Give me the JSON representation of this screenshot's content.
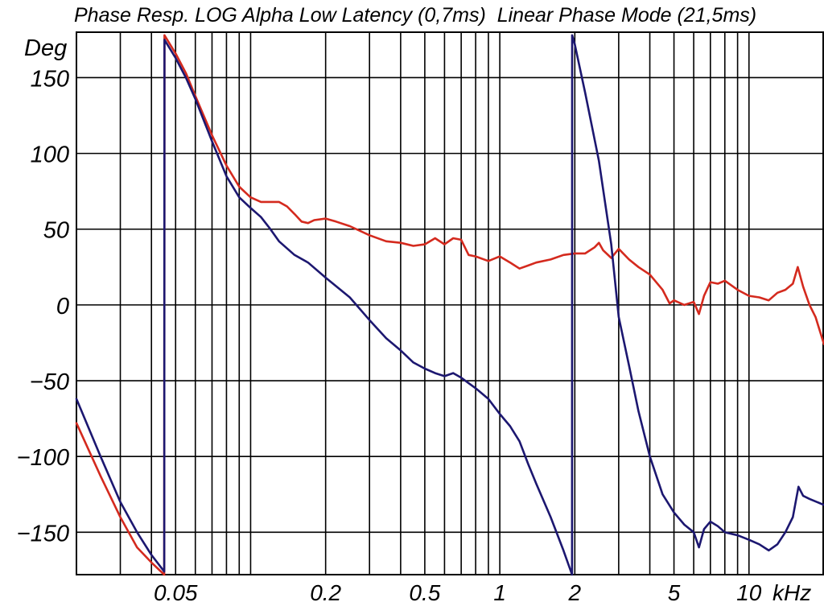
{
  "chart_data": {
    "type": "line",
    "title": "Phase Resp. LOG Alpha Low Latency (0,7ms)  Linear Phase Mode (21,5ms)",
    "ylabel": "Deg",
    "xlabel": "",
    "xscale": "log",
    "xunit": "kHz",
    "xlim": [
      0.02,
      20
    ],
    "ylim": [
      -178,
      180
    ],
    "grid": true,
    "y_ticks": [
      150,
      100,
      50,
      0,
      -50,
      -100,
      -150
    ],
    "y_tick_labels": [
      "150",
      "100",
      "50",
      "0",
      "−50",
      "−100",
      "−150"
    ],
    "x_tick_values": [
      0.05,
      0.2,
      0.5,
      1,
      2,
      5,
      10
    ],
    "x_tick_labels": [
      "0.05",
      "0.2",
      "0.5",
      "1",
      "2",
      "5",
      "10"
    ],
    "x_grid": [
      0.02,
      0.03,
      0.04,
      0.05,
      0.06,
      0.07,
      0.08,
      0.09,
      0.1,
      0.2,
      0.3,
      0.4,
      0.5,
      0.6,
      0.7,
      0.8,
      0.9,
      1,
      2,
      3,
      4,
      5,
      6,
      7,
      8,
      9,
      10,
      20
    ],
    "colors": {
      "red_series": "#d42a1e",
      "blue_series": "#1c1770",
      "grid": "#000000"
    },
    "series": [
      {
        "color": "#d42a1e",
        "points": [
          [
            0.02,
            -78
          ],
          [
            0.025,
            -113
          ],
          [
            0.03,
            -140
          ],
          [
            0.035,
            -160
          ],
          [
            0.04,
            -170
          ],
          [
            0.045,
            -178
          ],
          [
            0.0451,
            178
          ],
          [
            0.05,
            166
          ],
          [
            0.055,
            153
          ],
          [
            0.06,
            138
          ],
          [
            0.07,
            112
          ],
          [
            0.08,
            92
          ],
          [
            0.09,
            78
          ],
          [
            0.1,
            71
          ],
          [
            0.11,
            68
          ],
          [
            0.12,
            68
          ],
          [
            0.13,
            68
          ],
          [
            0.14,
            65
          ],
          [
            0.15,
            60
          ],
          [
            0.16,
            55
          ],
          [
            0.17,
            54
          ],
          [
            0.18,
            56
          ],
          [
            0.2,
            57
          ],
          [
            0.22,
            55
          ],
          [
            0.25,
            52
          ],
          [
            0.3,
            46
          ],
          [
            0.35,
            42
          ],
          [
            0.4,
            41
          ],
          [
            0.45,
            39
          ],
          [
            0.5,
            40
          ],
          [
            0.55,
            44
          ],
          [
            0.6,
            40
          ],
          [
            0.65,
            44
          ],
          [
            0.7,
            43
          ],
          [
            0.75,
            33
          ],
          [
            0.8,
            32
          ],
          [
            0.9,
            29
          ],
          [
            1.0,
            32
          ],
          [
            1.1,
            28
          ],
          [
            1.2,
            24
          ],
          [
            1.3,
            26
          ],
          [
            1.4,
            28
          ],
          [
            1.6,
            30
          ],
          [
            1.8,
            33
          ],
          [
            2.0,
            34
          ],
          [
            2.2,
            34
          ],
          [
            2.4,
            38
          ],
          [
            2.5,
            41
          ],
          [
            2.6,
            36
          ],
          [
            2.8,
            31
          ],
          [
            3.0,
            37
          ],
          [
            3.3,
            30
          ],
          [
            3.6,
            25
          ],
          [
            4.0,
            20
          ],
          [
            4.5,
            10
          ],
          [
            4.8,
            1
          ],
          [
            5.0,
            3
          ],
          [
            5.5,
            0
          ],
          [
            6.0,
            2
          ],
          [
            6.3,
            -6
          ],
          [
            6.6,
            6
          ],
          [
            7.0,
            15
          ],
          [
            7.5,
            14
          ],
          [
            8.0,
            16
          ],
          [
            9.0,
            10
          ],
          [
            10.0,
            6
          ],
          [
            11.0,
            5
          ],
          [
            12.0,
            3
          ],
          [
            13.0,
            8
          ],
          [
            14.0,
            10
          ],
          [
            15.0,
            14
          ],
          [
            15.7,
            25
          ],
          [
            16.5,
            12
          ],
          [
            17.5,
            0
          ],
          [
            18.5,
            -8
          ],
          [
            20.0,
            -26
          ]
        ]
      },
      {
        "color": "#1c1770",
        "points": [
          [
            0.02,
            -62
          ],
          [
            0.025,
            -100
          ],
          [
            0.03,
            -130
          ],
          [
            0.035,
            -150
          ],
          [
            0.04,
            -165
          ],
          [
            0.045,
            -176
          ],
          [
            0.0451,
            175
          ],
          [
            0.05,
            163
          ],
          [
            0.055,
            150
          ],
          [
            0.06,
            136
          ],
          [
            0.07,
            108
          ],
          [
            0.08,
            85
          ],
          [
            0.09,
            71
          ],
          [
            0.1,
            64
          ],
          [
            0.11,
            58
          ],
          [
            0.12,
            50
          ],
          [
            0.13,
            42
          ],
          [
            0.15,
            33
          ],
          [
            0.17,
            28
          ],
          [
            0.2,
            18
          ],
          [
            0.25,
            5
          ],
          [
            0.3,
            -10
          ],
          [
            0.35,
            -22
          ],
          [
            0.4,
            -30
          ],
          [
            0.45,
            -38
          ],
          [
            0.5,
            -42
          ],
          [
            0.55,
            -45
          ],
          [
            0.6,
            -47
          ],
          [
            0.65,
            -45
          ],
          [
            0.7,
            -48
          ],
          [
            0.8,
            -55
          ],
          [
            0.9,
            -62
          ],
          [
            1.0,
            -72
          ],
          [
            1.1,
            -80
          ],
          [
            1.2,
            -90
          ],
          [
            1.3,
            -105
          ],
          [
            1.4,
            -118
          ],
          [
            1.6,
            -140
          ],
          [
            1.8,
            -162
          ],
          [
            1.95,
            -178
          ],
          [
            1.951,
            178
          ],
          [
            2.0,
            172
          ],
          [
            2.2,
            140
          ],
          [
            2.5,
            95
          ],
          [
            2.8,
            40
          ],
          [
            3.0,
            -8
          ],
          [
            3.3,
            -40
          ],
          [
            3.6,
            -70
          ],
          [
            4.0,
            -100
          ],
          [
            4.5,
            -125
          ],
          [
            5.0,
            -137
          ],
          [
            5.5,
            -145
          ],
          [
            6.0,
            -150
          ],
          [
            6.3,
            -160
          ],
          [
            6.6,
            -148
          ],
          [
            7.0,
            -143
          ],
          [
            7.5,
            -146
          ],
          [
            8.0,
            -150
          ],
          [
            9.0,
            -152
          ],
          [
            10.0,
            -155
          ],
          [
            11.0,
            -158
          ],
          [
            12.0,
            -162
          ],
          [
            13.0,
            -158
          ],
          [
            14.0,
            -150
          ],
          [
            15.0,
            -140
          ],
          [
            15.8,
            -120
          ],
          [
            16.5,
            -126
          ],
          [
            17.5,
            -128
          ],
          [
            20.0,
            -132
          ]
        ]
      }
    ]
  }
}
